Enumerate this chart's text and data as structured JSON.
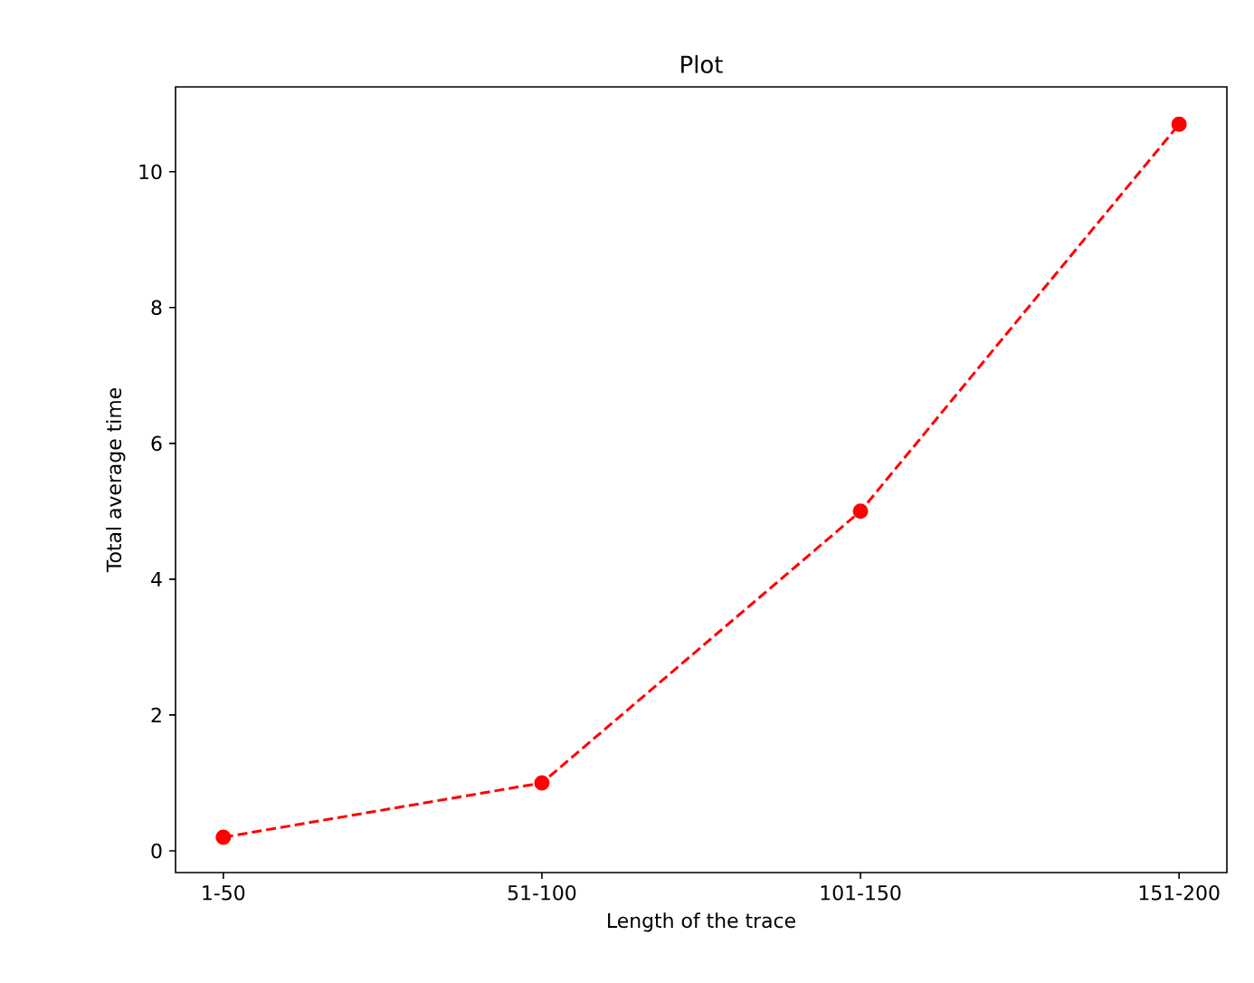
{
  "chart_data": {
    "type": "line",
    "title": "Plot",
    "xlabel": "Length of the trace",
    "ylabel": "Total average time",
    "categories": [
      "1-50",
      "51-100",
      "101-150",
      "151-200"
    ],
    "series": [
      {
        "color": "#ff0000",
        "values": [
          0.2,
          1.0,
          5.0,
          10.7
        ]
      }
    ],
    "ylim": [
      -0.32,
      11.25
    ],
    "yticks": [
      0,
      2,
      4,
      6,
      8,
      10
    ],
    "marker": "circle",
    "line_style": "dashed",
    "grid": false
  }
}
